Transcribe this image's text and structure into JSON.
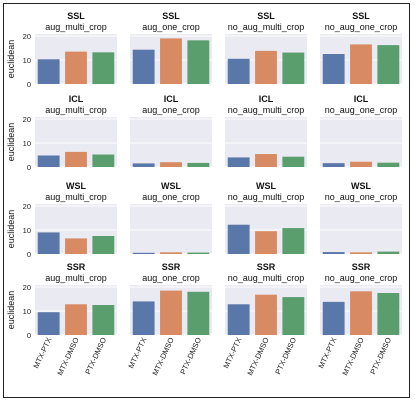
{
  "chart_data": {
    "type": "bar",
    "ylabel": "euclidean",
    "ylim": [
      0,
      20
    ],
    "yticks": [
      0,
      10,
      20
    ],
    "grid": true,
    "categories": [
      "MTX-PTX",
      "MTX-DMSO",
      "PTX-DMSO"
    ],
    "colors": [
      "#5a77aa",
      "#d88a63",
      "#5a9e6e"
    ],
    "background": "#eaeaf2",
    "panels": [
      {
        "metric": "SSL",
        "condition": "aug_multi_crop",
        "values": [
          10.3,
          13.5,
          13.2
        ]
      },
      {
        "metric": "SSL",
        "condition": "aug_one_crop",
        "values": [
          14.3,
          19.0,
          18.2
        ]
      },
      {
        "metric": "SSL",
        "condition": "no_aug_multi_crop",
        "values": [
          10.5,
          13.8,
          13.1
        ]
      },
      {
        "metric": "SSL",
        "condition": "no_aug_one_crop",
        "values": [
          12.5,
          16.5,
          16.2
        ]
      },
      {
        "metric": "ICL",
        "condition": "aug_multi_crop",
        "values": [
          4.8,
          6.3,
          5.2
        ]
      },
      {
        "metric": "ICL",
        "condition": "aug_one_crop",
        "values": [
          1.5,
          2.0,
          1.7
        ]
      },
      {
        "metric": "ICL",
        "condition": "no_aug_multi_crop",
        "values": [
          4.0,
          5.4,
          4.3
        ]
      },
      {
        "metric": "ICL",
        "condition": "no_aug_one_crop",
        "values": [
          1.6,
          2.2,
          1.8
        ]
      },
      {
        "metric": "WSL",
        "condition": "aug_multi_crop",
        "values": [
          9.0,
          6.5,
          7.5
        ]
      },
      {
        "metric": "WSL",
        "condition": "aug_one_crop",
        "values": [
          0.5,
          0.7,
          0.6
        ]
      },
      {
        "metric": "WSL",
        "condition": "no_aug_multi_crop",
        "values": [
          12.2,
          9.5,
          10.8
        ]
      },
      {
        "metric": "WSL",
        "condition": "no_aug_one_crop",
        "values": [
          0.8,
          0.7,
          1.0
        ]
      },
      {
        "metric": "SSR",
        "condition": "aug_multi_crop",
        "values": [
          9.5,
          12.8,
          12.5
        ]
      },
      {
        "metric": "SSR",
        "condition": "aug_one_crop",
        "values": [
          14.0,
          18.5,
          18.0
        ]
      },
      {
        "metric": "SSR",
        "condition": "no_aug_multi_crop",
        "values": [
          12.8,
          16.8,
          15.8
        ]
      },
      {
        "metric": "SSR",
        "condition": "no_aug_one_crop",
        "values": [
          13.8,
          18.2,
          17.5
        ]
      }
    ]
  }
}
